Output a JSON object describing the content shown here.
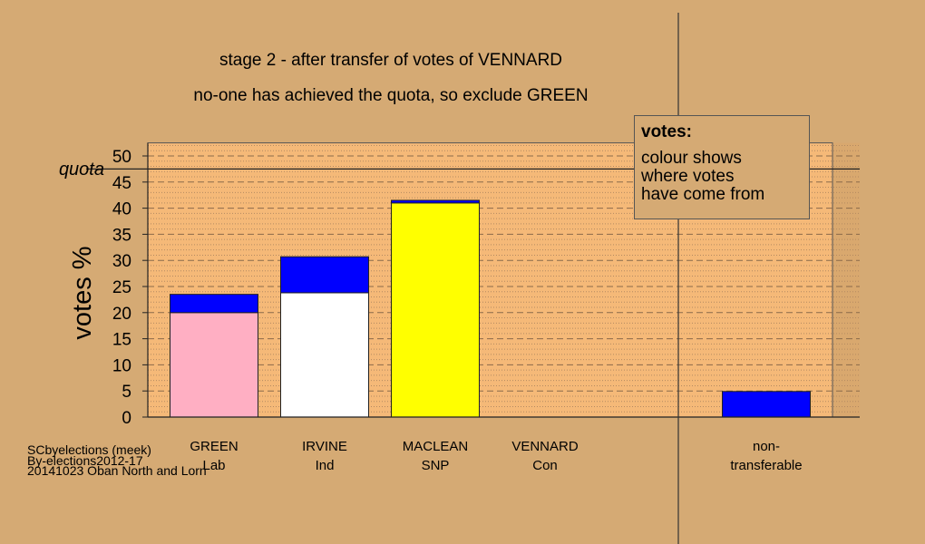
{
  "colors": {
    "background": "#d5aa74",
    "plot_bg": "#f5b978",
    "transfer": "#0000ff",
    "grid_dashed": "#8a6a4a",
    "grid_dotted": "#b48a62"
  },
  "chart_data": {
    "type": "bar",
    "title": "stage 2 - after transfer of votes of VENNARD",
    "subtitle": "no-one has achieved the quota, so exclude GREEN",
    "xlabel": "",
    "ylabel": "votes %",
    "ylim": [
      0,
      52.5
    ],
    "yticks": [
      "0",
      "5",
      "10",
      "15",
      "20",
      "25",
      "30",
      "35",
      "40",
      "45",
      "50"
    ],
    "grid": true,
    "quota": {
      "label": "quota",
      "value": 47.5
    },
    "categories": [
      {
        "name": "GREEN",
        "party": "Lab"
      },
      {
        "name": "IRVINE",
        "party": "Ind"
      },
      {
        "name": "MACLEAN",
        "party": "SNP"
      },
      {
        "name": "VENNARD",
        "party": "Con"
      },
      {
        "name": "non-",
        "party": "transferable"
      }
    ],
    "bars": [
      {
        "category": "GREEN",
        "segments": [
          {
            "value": 20.0,
            "color": "#ffafc3"
          },
          {
            "value": 3.5,
            "color": "#0000ff"
          }
        ]
      },
      {
        "category": "IRVINE",
        "segments": [
          {
            "value": 23.8,
            "color": "#ffffff"
          },
          {
            "value": 6.9,
            "color": "#0000ff"
          }
        ]
      },
      {
        "category": "MACLEAN",
        "segments": [
          {
            "value": 41.0,
            "color": "#ffff00"
          },
          {
            "value": 0.5,
            "color": "#0000ff"
          }
        ]
      },
      {
        "category": "VENNARD",
        "segments": []
      },
      {
        "category": "non-transferable",
        "segments": [
          {
            "value": 4.9,
            "color": "#0000ff"
          }
        ]
      }
    ],
    "legend": {
      "title": "votes:",
      "text": "colour shows\nwhere votes\nhave come from",
      "placement": "top-right"
    }
  },
  "credits": {
    "line1": "SCbyelections (meek)",
    "line2": "By-elections2012-17",
    "line3": "20141023 Oban North and Lorn"
  }
}
